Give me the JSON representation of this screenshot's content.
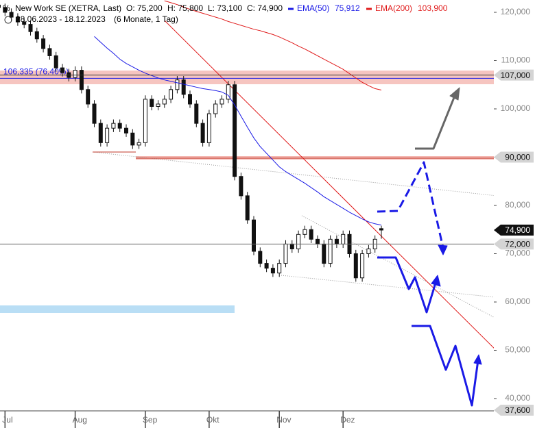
{
  "chart_data": {
    "type": "candlestick",
    "title": "New Work SE (XETRA, Last)",
    "ohlc_labels": [
      "O: 75,200",
      "H: 75,800",
      "L: 73,100",
      "C: 74,900"
    ],
    "date_range": "28.06.2023 - 18.12.2023",
    "period": "(6 Monate, 1 Tag)",
    "categories": [
      null,
      "Jul",
      null,
      null,
      null,
      null,
      null,
      null,
      null,
      null,
      null,
      null,
      "Aug",
      null,
      null,
      null,
      null,
      null,
      null,
      null,
      null,
      null,
      null,
      "Sep",
      null,
      null,
      null,
      null,
      null,
      null,
      null,
      null,
      null,
      "Okt",
      null,
      null,
      null,
      null,
      null,
      null,
      null,
      null,
      null,
      null,
      "Nov",
      null,
      null,
      null,
      null,
      null,
      null,
      null,
      null,
      null,
      "Dez",
      null,
      null,
      null,
      null,
      null,
      null
    ],
    "open": [
      121500,
      121000,
      120000,
      119000,
      118000,
      117500,
      116000,
      114500,
      112500,
      111000,
      108500,
      107500,
      106500,
      108000,
      104000,
      101000,
      97000,
      93000,
      96000,
      97000,
      96000,
      95000,
      92500,
      93000,
      102000,
      100500,
      101000,
      102000,
      104000,
      106000,
      103000,
      101000,
      97000,
      93000,
      99000,
      101000,
      102000,
      105000,
      86000,
      82000,
      77000,
      70500,
      68000,
      67000,
      66000,
      68000,
      72000,
      71000,
      74000,
      75000,
      73000,
      72000,
      68000,
      73000,
      72000,
      74000,
      70000,
      65000,
      70000,
      71000,
      75200
    ],
    "high": [
      122300,
      121800,
      120800,
      119800,
      118800,
      118300,
      116800,
      115300,
      113300,
      111800,
      109300,
      108300,
      108800,
      108800,
      104800,
      101800,
      97800,
      96800,
      97800,
      97800,
      96800,
      95800,
      93800,
      102800,
      102800,
      101800,
      102800,
      104800,
      106800,
      106800,
      103800,
      101800,
      97800,
      99800,
      101800,
      102800,
      105800,
      105800,
      86800,
      82800,
      77800,
      71300,
      68800,
      67800,
      68800,
      72800,
      72800,
      74800,
      75800,
      75800,
      73800,
      72800,
      73800,
      73800,
      74800,
      74800,
      70800,
      70800,
      71800,
      73800,
      75800
    ],
    "low": [
      120200,
      119200,
      118200,
      117200,
      116700,
      115200,
      113700,
      111700,
      110200,
      107700,
      106700,
      105700,
      105700,
      103200,
      100200,
      96200,
      92200,
      92200,
      95200,
      95200,
      94200,
      91700,
      91700,
      92200,
      99700,
      99700,
      100200,
      101200,
      103200,
      102200,
      100200,
      96200,
      92200,
      92200,
      98200,
      100200,
      101200,
      85200,
      81200,
      76200,
      69700,
      67200,
      66200,
      65200,
      65200,
      67200,
      70200,
      70200,
      73200,
      72200,
      71200,
      67200,
      67200,
      71200,
      71200,
      69200,
      64200,
      64200,
      69200,
      70200,
      73100
    ],
    "close": [
      121000,
      120000,
      119000,
      118000,
      117500,
      116000,
      114500,
      112500,
      111000,
      108500,
      107500,
      106500,
      108000,
      104000,
      101000,
      97000,
      93000,
      96000,
      97000,
      96000,
      95000,
      92500,
      93000,
      102000,
      100500,
      101000,
      102000,
      104000,
      106000,
      103000,
      101000,
      97000,
      93000,
      99000,
      101000,
      102000,
      105000,
      86000,
      82000,
      77000,
      70500,
      68000,
      67000,
      66000,
      68000,
      72000,
      71000,
      74000,
      75000,
      73000,
      72000,
      68000,
      73000,
      72000,
      74000,
      70000,
      65000,
      70000,
      71000,
      73000,
      74900
    ],
    "series": [
      {
        "name": "EMA(50)",
        "last_label": "75,912",
        "color": "#1a1ae6",
        "values": [
          null,
          null,
          null,
          null,
          null,
          null,
          null,
          null,
          null,
          null,
          null,
          null,
          null,
          null,
          null,
          115000,
          113800,
          112600,
          111500,
          110300,
          109400,
          108700,
          108000,
          107400,
          106900,
          106400,
          106000,
          105700,
          105400,
          105100,
          104800,
          104500,
          104200,
          104000,
          103800,
          103500,
          102800,
          100800,
          98500,
          96200,
          94000,
          92200,
          90800,
          89400,
          88000,
          87000,
          86200,
          85400,
          84600,
          83700,
          82800,
          81800,
          81000,
          80200,
          79400,
          78600,
          77900,
          77200,
          76600,
          76200,
          75912
        ]
      },
      {
        "name": "EMA(200)",
        "last_label": "103,900",
        "color": "#e01b1b",
        "values": [
          null,
          null,
          null,
          null,
          null,
          null,
          null,
          null,
          null,
          null,
          null,
          null,
          null,
          null,
          null,
          null,
          null,
          null,
          null,
          null,
          null,
          null,
          null,
          null,
          null,
          null,
          122400,
          122000,
          121600,
          121100,
          120600,
          120200,
          119800,
          119400,
          119000,
          118600,
          118100,
          117700,
          117300,
          116900,
          116500,
          116200,
          115800,
          115400,
          114900,
          114300,
          113700,
          113000,
          112400,
          111700,
          111000,
          110300,
          109600,
          108900,
          108200,
          107300,
          106400,
          105500,
          104800,
          104200,
          103900
        ]
      }
    ],
    "ylim": [
      37450,
      122550
    ],
    "yticks": [
      {
        "value": 40000,
        "label": "40,000"
      },
      {
        "value": 50000,
        "label": "50,000"
      },
      {
        "value": 60000,
        "label": "60,000"
      },
      {
        "value": 70000,
        "label": "70,000"
      },
      {
        "value": 80000,
        "label": "80,000"
      },
      {
        "value": 90000,
        "label": "90,000"
      },
      {
        "value": 100000,
        "label": "100,000"
      },
      {
        "value": 110000,
        "label": "110,000"
      },
      {
        "value": 120000,
        "label": "120,000"
      }
    ],
    "fib_level": {
      "value": 106335,
      "label": "106,335 (76.40%)"
    },
    "levels": [
      {
        "value": 107000,
        "label": "107,000"
      },
      {
        "value": 90000,
        "label": "90,000"
      },
      {
        "value": 74900,
        "label": "74,900"
      },
      {
        "value": 72000,
        "label": "72,000"
      },
      {
        "value": 37600,
        "label": "37,600"
      }
    ]
  }
}
